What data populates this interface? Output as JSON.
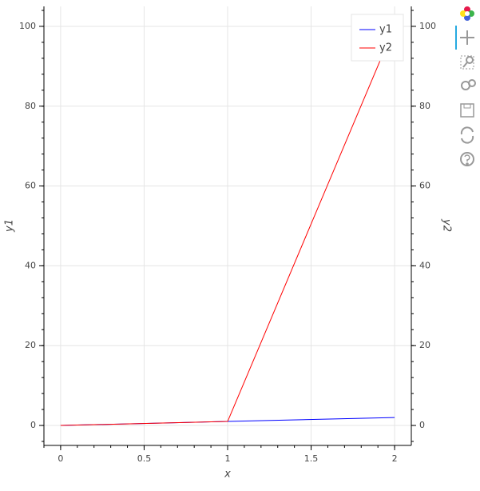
{
  "chart_data": {
    "type": "line",
    "x_label": "x",
    "y_label": "y1",
    "y2_label": "y2",
    "x": [
      0,
      1,
      2
    ],
    "series": [
      {
        "name": "y1",
        "color": "#0000ff",
        "values": [
          0,
          1,
          2
        ]
      },
      {
        "name": "y2",
        "color": "#ff0000",
        "values": [
          0,
          1,
          100
        ],
        "axis": "y2"
      }
    ],
    "xlim": [
      -0.1,
      2.1
    ],
    "xticks": [
      0,
      0.5,
      1,
      1.5,
      2
    ],
    "ylim": [
      -5,
      105
    ],
    "yticks": [
      0,
      20,
      40,
      60,
      80,
      100
    ],
    "y2lim": [
      -5,
      105
    ],
    "y2ticks": [
      0,
      20,
      40,
      60,
      80,
      100
    ],
    "grid": true,
    "legend": "top-right"
  }
}
